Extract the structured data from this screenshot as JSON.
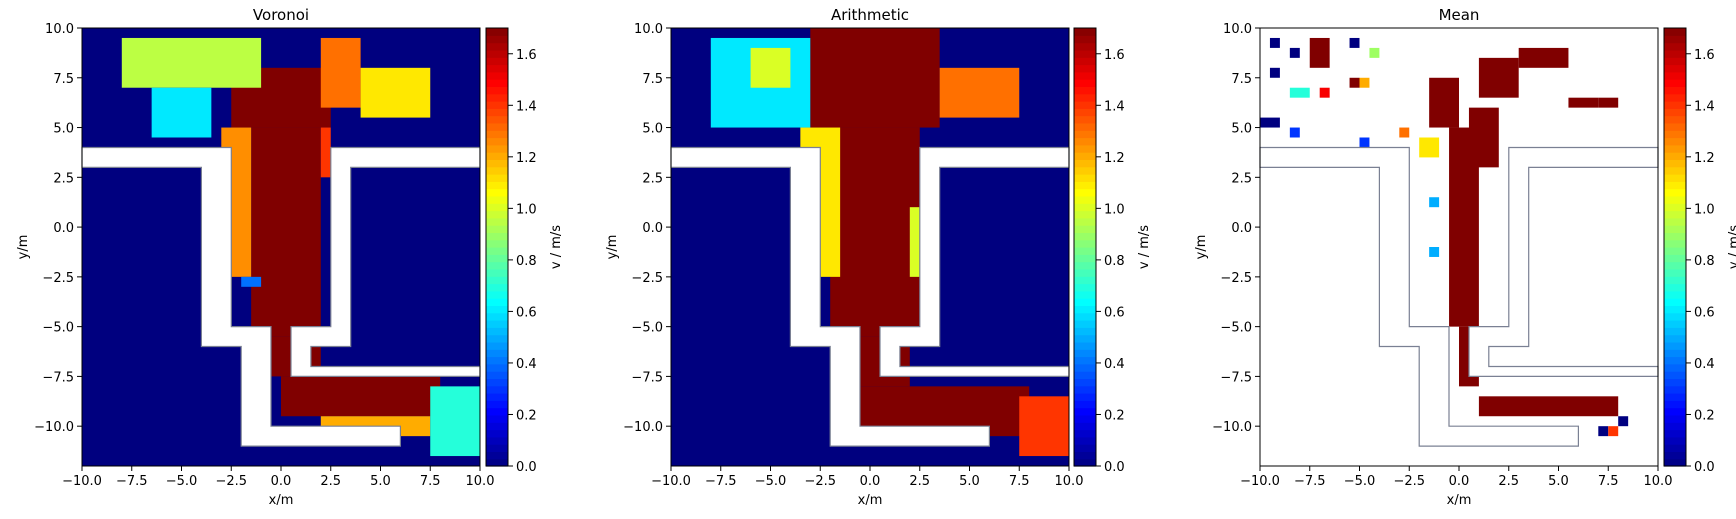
{
  "chart_data": [
    {
      "type": "heatmap",
      "title": "Voronoi",
      "xlabel": "x/m",
      "ylabel": "y/m",
      "colorbar_label": "v / m/s",
      "colormap": "jet",
      "xlim": [
        -10,
        10
      ],
      "ylim": [
        -12,
        10
      ],
      "clim": [
        0,
        1.7
      ],
      "background": "#00007f",
      "xticks": [
        -10,
        -7.5,
        -5,
        -2.5,
        0,
        2.5,
        5,
        7.5,
        10
      ],
      "xtick_labels": [
        "−10.0",
        "−7.5",
        "−5.0",
        "−2.5",
        "0.0",
        "2.5",
        "5.0",
        "7.5",
        "10.0"
      ],
      "yticks": [
        10,
        7.5,
        5,
        2.5,
        0,
        -2.5,
        -5,
        -7.5,
        -10
      ],
      "ytick_labels": [
        "10.0",
        "7.5",
        "5.0",
        "2.5",
        "0.0",
        "−2.5",
        "−5.0",
        "−7.5",
        "−10.0"
      ],
      "cticks": [
        0,
        0.2,
        0.4,
        0.6,
        0.8,
        1.0,
        1.2,
        1.4,
        1.6
      ],
      "ctick_labels": [
        "0.0",
        "0.2",
        "0.4",
        "0.6",
        "0.8",
        "1.0",
        "1.2",
        "1.4",
        "1.6"
      ],
      "cells": [
        {
          "x": [
            -2.5,
            2.5
          ],
          "y": [
            5,
            8
          ],
          "v": 1.7
        },
        {
          "x": [
            -1.5,
            2
          ],
          "y": [
            -5.5,
            5
          ],
          "v": 1.7
        },
        {
          "x": [
            -0.5,
            2
          ],
          "y": [
            -7.5,
            -5.5
          ],
          "v": 1.7
        },
        {
          "x": [
            0,
            8
          ],
          "y": [
            -9.5,
            -7.5
          ],
          "v": 1.7
        },
        {
          "x": [
            -8,
            -1
          ],
          "y": [
            7,
            9.5
          ],
          "v": 0.95
        },
        {
          "x": [
            -3,
            -1.5
          ],
          "y": [
            -2.5,
            5
          ],
          "v": 1.25
        },
        {
          "x": [
            2,
            4
          ],
          "y": [
            6,
            9.5
          ],
          "v": 1.3
        },
        {
          "x": [
            4,
            7.5
          ],
          "y": [
            5.5,
            8
          ],
          "v": 1.1
        },
        {
          "x": [
            2,
            2.5
          ],
          "y": [
            2.5,
            5
          ],
          "v": 1.4
        },
        {
          "x": [
            -6.5,
            -3.5
          ],
          "y": [
            4.5,
            7
          ],
          "v": 0.6
        },
        {
          "x": [
            2,
            7.5
          ],
          "y": [
            -10.5,
            -9.5
          ],
          "v": 1.2
        },
        {
          "x": [
            7.5,
            10
          ],
          "y": [
            -11.5,
            -8
          ],
          "v": 0.7
        },
        {
          "x": [
            -2,
            -1
          ],
          "y": [
            -3,
            -2.5
          ],
          "v": 0.4
        }
      ]
    },
    {
      "type": "heatmap",
      "title": "Arithmetic",
      "xlabel": "x/m",
      "ylabel": "y/m",
      "colorbar_label": "v / m/s",
      "colormap": "jet",
      "xlim": [
        -10,
        10
      ],
      "ylim": [
        -12,
        10
      ],
      "clim": [
        0,
        1.7
      ],
      "background": "#00007f",
      "xticks": [
        -10,
        -7.5,
        -5,
        -2.5,
        0,
        2.5,
        5,
        7.5,
        10
      ],
      "xtick_labels": [
        "−10.0",
        "−7.5",
        "−5.0",
        "−2.5",
        "0.0",
        "2.5",
        "5.0",
        "7.5",
        "10.0"
      ],
      "yticks": [
        10,
        7.5,
        5,
        2.5,
        0,
        -2.5,
        -5,
        -7.5,
        -10
      ],
      "ytick_labels": [
        "10.0",
        "7.5",
        "5.0",
        "2.5",
        "0.0",
        "−2.5",
        "−5.0",
        "−7.5",
        "−10.0"
      ],
      "cticks": [
        0,
        0.2,
        0.4,
        0.6,
        0.8,
        1.0,
        1.2,
        1.4,
        1.6
      ],
      "ctick_labels": [
        "0.0",
        "0.2",
        "0.4",
        "0.6",
        "0.8",
        "1.0",
        "1.2",
        "1.4",
        "1.6"
      ],
      "cells": [
        {
          "x": [
            -3,
            3.5
          ],
          "y": [
            5,
            10
          ],
          "v": 1.7
        },
        {
          "x": [
            -2,
            2.5
          ],
          "y": [
            -5.5,
            5
          ],
          "v": 1.7
        },
        {
          "x": [
            -1,
            2
          ],
          "y": [
            -8,
            -5.5
          ],
          "v": 1.7
        },
        {
          "x": [
            -1,
            8
          ],
          "y": [
            -10.5,
            -8
          ],
          "v": 1.7
        },
        {
          "x": [
            -8,
            -3
          ],
          "y": [
            5,
            9.5
          ],
          "v": 0.6
        },
        {
          "x": [
            -6,
            -4
          ],
          "y": [
            7,
            9
          ],
          "v": 1.0
        },
        {
          "x": [
            -3.5,
            -1.5
          ],
          "y": [
            -2.5,
            5
          ],
          "v": 1.1
        },
        {
          "x": [
            3.5,
            7.5
          ],
          "y": [
            5.5,
            8
          ],
          "v": 1.3
        },
        {
          "x": [
            2,
            3
          ],
          "y": [
            -2.5,
            1
          ],
          "v": 1.0
        },
        {
          "x": [
            7.5,
            10
          ],
          "y": [
            -11.5,
            -8.5
          ],
          "v": 1.4
        },
        {
          "x": [
            -3,
            -2.5
          ],
          "y": [
            -4,
            -2.5
          ],
          "v": 0.4
        }
      ]
    },
    {
      "type": "heatmap",
      "title": "Mean",
      "xlabel": "x/m",
      "ylabel": "y/m",
      "colorbar_label": "v / m/s",
      "colormap": "jet",
      "xlim": [
        -10,
        10
      ],
      "ylim": [
        -12,
        10
      ],
      "clim": [
        0,
        1.7
      ],
      "background": "#ffffff",
      "xticks": [
        -10,
        -7.5,
        -5,
        -2.5,
        0,
        2.5,
        5,
        7.5,
        10
      ],
      "xtick_labels": [
        "−10.0",
        "−7.5",
        "−5.0",
        "−2.5",
        "0.0",
        "2.5",
        "5.0",
        "7.5",
        "10.0"
      ],
      "yticks": [
        10,
        7.5,
        5,
        2.5,
        0,
        -2.5,
        -5,
        -7.5,
        -10
      ],
      "ytick_labels": [
        "10.0",
        "7.5",
        "5.0",
        "2.5",
        "0.0",
        "−2.5",
        "−5.0",
        "−7.5",
        "−10.0"
      ],
      "cticks": [
        0,
        0.2,
        0.4,
        0.6,
        0.8,
        1.0,
        1.2,
        1.4,
        1.6
      ],
      "ctick_labels": [
        "0.0",
        "0.2",
        "0.4",
        "0.6",
        "0.8",
        "1.0",
        "1.2",
        "1.4",
        "1.6"
      ],
      "cells": [
        {
          "x": [
            -1.5,
            0
          ],
          "y": [
            5,
            7.5
          ],
          "v": 1.7
        },
        {
          "x": [
            -0.5,
            1
          ],
          "y": [
            -5,
            5
          ],
          "v": 1.7
        },
        {
          "x": [
            0,
            1
          ],
          "y": [
            -8,
            -5
          ],
          "v": 1.7
        },
        {
          "x": [
            1,
            8
          ],
          "y": [
            -9.5,
            -8.5
          ],
          "v": 1.7
        },
        {
          "x": [
            1,
            3
          ],
          "y": [
            6.5,
            8.5
          ],
          "v": 1.7
        },
        {
          "x": [
            3,
            5.5
          ],
          "y": [
            8,
            9
          ],
          "v": 1.7
        },
        {
          "x": [
            0.5,
            2
          ],
          "y": [
            3,
            6
          ],
          "v": 1.7
        },
        {
          "x": [
            -7.5,
            -6.5
          ],
          "y": [
            8,
            9.5
          ],
          "v": 1.7
        },
        {
          "x": [
            -5.5,
            -5
          ],
          "y": [
            7,
            7.5
          ],
          "v": 1.7
        },
        {
          "x": [
            5.5,
            7
          ],
          "y": [
            6,
            6.5
          ],
          "v": 1.7
        },
        {
          "x": [
            7,
            8
          ],
          "y": [
            6,
            6.5
          ],
          "v": 1.7
        },
        {
          "x": [
            -9.5,
            -9
          ],
          "y": [
            9,
            9.5
          ],
          "v": 0.0
        },
        {
          "x": [
            -8.5,
            -8
          ],
          "y": [
            8.5,
            9
          ],
          "v": 0.0
        },
        {
          "x": [
            -5.5,
            -5
          ],
          "y": [
            9,
            9.5
          ],
          "v": 0.0
        },
        {
          "x": [
            -9.5,
            -9
          ],
          "y": [
            7.5,
            8
          ],
          "v": 0.0
        },
        {
          "x": [
            -10,
            -9
          ],
          "y": [
            5,
            5.5
          ],
          "v": 0.0
        },
        {
          "x": [
            -8.5,
            -8
          ],
          "y": [
            4.5,
            5
          ],
          "v": 0.3
        },
        {
          "x": [
            -5,
            -4.5
          ],
          "y": [
            4,
            4.5
          ],
          "v": 0.3
        },
        {
          "x": [
            -4.5,
            -4
          ],
          "y": [
            8.5,
            9
          ],
          "v": 0.9
        },
        {
          "x": [
            -8.5,
            -7.5
          ],
          "y": [
            6.5,
            7
          ],
          "v": 0.7
        },
        {
          "x": [
            -7,
            -6.5
          ],
          "y": [
            6.5,
            7
          ],
          "v": 1.5
        },
        {
          "x": [
            -5,
            -4.5
          ],
          "y": [
            7,
            7.5
          ],
          "v": 1.2
        },
        {
          "x": [
            -2,
            -1
          ],
          "y": [
            3.5,
            4.5
          ],
          "v": 1.1
        },
        {
          "x": [
            -3,
            -2.5
          ],
          "y": [
            4.5,
            5
          ],
          "v": 1.3
        },
        {
          "x": [
            -1.5,
            -1
          ],
          "y": [
            1,
            1.5
          ],
          "v": 0.5
        },
        {
          "x": [
            -1.5,
            -1
          ],
          "y": [
            -1.5,
            -1
          ],
          "v": 0.5
        },
        {
          "x": [
            7,
            7.5
          ],
          "y": [
            -10.5,
            -10
          ],
          "v": 0.0
        },
        {
          "x": [
            7.5,
            8
          ],
          "y": [
            -10.5,
            -10
          ],
          "v": 1.4
        },
        {
          "x": [
            8,
            8.5
          ],
          "y": [
            -10,
            -9.5
          ],
          "v": 0.0
        }
      ]
    }
  ]
}
